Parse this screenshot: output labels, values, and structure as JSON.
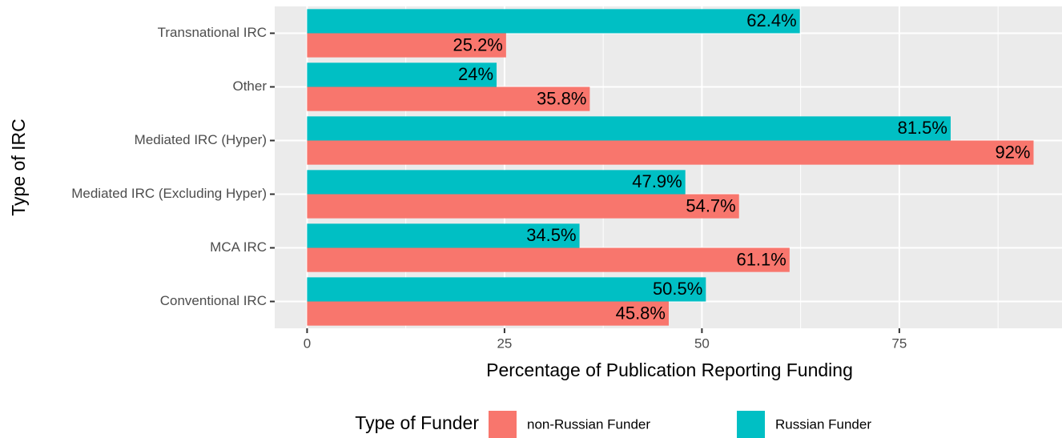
{
  "chart_data": {
    "type": "bar",
    "orientation": "horizontal",
    "x_label": "Percentage of Publication Reporting Funding",
    "y_label": "Type of IRC",
    "legend_title": "Type of Funder",
    "legend_position": "bottom",
    "categories": [
      "Transnational IRC",
      "Other",
      "Mediated IRC (Hyper)",
      "Mediated IRC (Excluding Hyper)",
      "MCA IRC",
      "Conventional IRC"
    ],
    "series": [
      {
        "name": "non-Russian Funder",
        "color": "#F8766D",
        "values": [
          25.2,
          35.8,
          92,
          54.7,
          61.1,
          45.8
        ],
        "value_labels": [
          "25.2%",
          "35.8%",
          "92%",
          "54.7%",
          "61.1%",
          "45.8%"
        ]
      },
      {
        "name": "Russian Funder",
        "color": "#00BFC4",
        "values": [
          62.4,
          24,
          81.5,
          47.9,
          34.5,
          50.5
        ],
        "value_labels": [
          "62.4%",
          "24%",
          "81.5%",
          "47.9%",
          "34.5%",
          "50.5%"
        ]
      }
    ],
    "xlim": [
      -4.1,
      95.6
    ],
    "xticks": [
      0,
      25,
      50,
      75
    ],
    "grid": true
  }
}
